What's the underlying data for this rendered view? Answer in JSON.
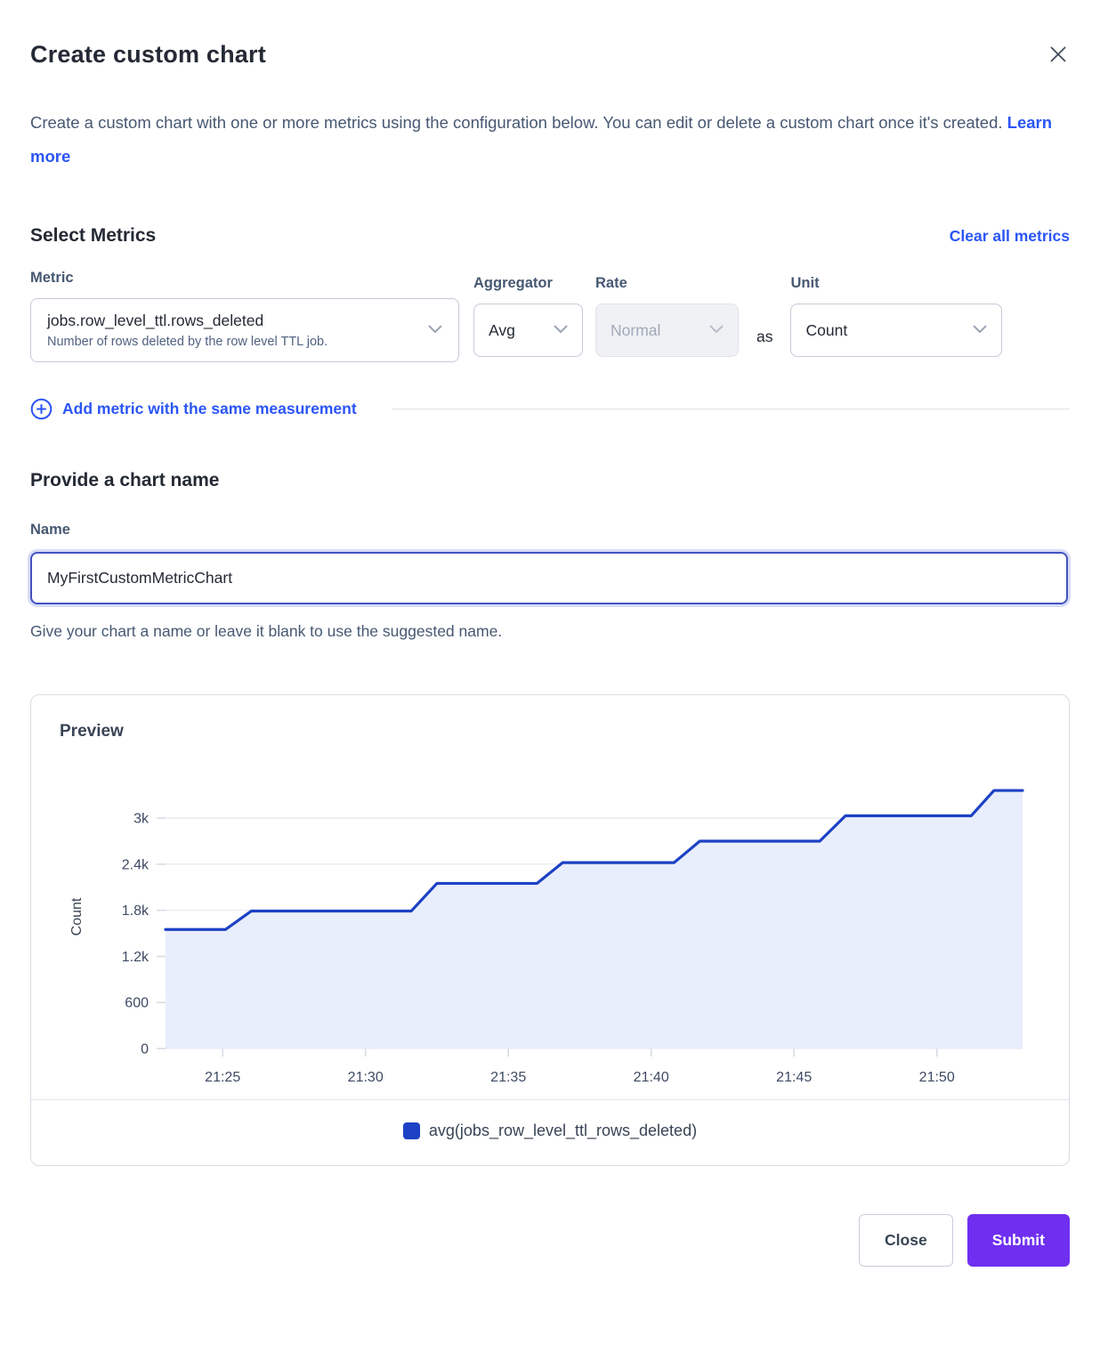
{
  "modal": {
    "title": "Create custom chart",
    "description": "Create a custom chart with one or more metrics using the configuration below. You can edit or delete a custom chart once it's created.",
    "learn_more_label": "Learn more"
  },
  "metrics_section": {
    "heading": "Select Metrics",
    "clear_all_label": "Clear all metrics",
    "columns": {
      "metric": "Metric",
      "aggregator": "Aggregator",
      "rate": "Rate",
      "unit": "Unit"
    },
    "metric_row": {
      "metric_value": "jobs.row_level_ttl.rows_deleted",
      "metric_description": "Number of rows deleted by the row level TTL job.",
      "aggregator_value": "Avg",
      "rate_value": "Normal",
      "rate_disabled": true,
      "as_label": "as",
      "unit_value": "Count"
    },
    "add_metric_label": "Add metric with the same measurement"
  },
  "name_section": {
    "heading": "Provide a chart name",
    "label": "Name",
    "value": "MyFirstCustomMetricChart",
    "helper": "Give your chart a name or leave it blank to use the suggested name."
  },
  "preview": {
    "heading": "Preview",
    "legend": [
      {
        "label": "avg(jobs_row_level_ttl_rows_deleted)",
        "color": "#1c41c4"
      }
    ]
  },
  "footer": {
    "close_label": "Close",
    "submit_label": "Submit"
  },
  "colors": {
    "link": "#2b55f6",
    "line": "#1c41c4",
    "area_fill": "#e9eefc",
    "grid": "#e6e9f0",
    "tick_mark": "#d7dbe3",
    "submit_bg": "#6f2ff0",
    "focus_border": "#4353c2"
  },
  "icons": [
    "close-icon",
    "chevron-down-icon",
    "plus-circle-icon"
  ],
  "chart_data": {
    "type": "area",
    "title": "Preview",
    "xlabel": "",
    "ylabel": "Count",
    "series_name": "avg(jobs_row_level_ttl_rows_deleted)",
    "x_time_origin": "21:23",
    "points_minutes_value": [
      [
        0,
        1550
      ],
      [
        2.1,
        1550
      ],
      [
        3,
        1790
      ],
      [
        8.6,
        1790
      ],
      [
        9.5,
        2150
      ],
      [
        13,
        2150
      ],
      [
        13.9,
        2420
      ],
      [
        17.8,
        2420
      ],
      [
        18.7,
        2700
      ],
      [
        22.9,
        2700
      ],
      [
        23.8,
        3030
      ],
      [
        28.2,
        3030
      ],
      [
        29,
        3360
      ],
      [
        30,
        3360
      ]
    ],
    "x_ticks": [
      {
        "x": 2,
        "label": "21:25"
      },
      {
        "x": 7,
        "label": "21:30"
      },
      {
        "x": 12,
        "label": "21:35"
      },
      {
        "x": 17,
        "label": "21:40"
      },
      {
        "x": 22,
        "label": "21:45"
      },
      {
        "x": 27,
        "label": "21:50"
      }
    ],
    "y_ticks": [
      {
        "v": 0,
        "label": "0"
      },
      {
        "v": 600,
        "label": "600"
      },
      {
        "v": 1200,
        "label": "1.2k"
      },
      {
        "v": 1800,
        "label": "1.8k"
      },
      {
        "v": 2400,
        "label": "2.4k"
      },
      {
        "v": 3000,
        "label": "3k"
      }
    ],
    "xlim": [
      0,
      30
    ],
    "ylim": [
      0,
      3430
    ],
    "grid": true,
    "legend_position": "bottom"
  }
}
